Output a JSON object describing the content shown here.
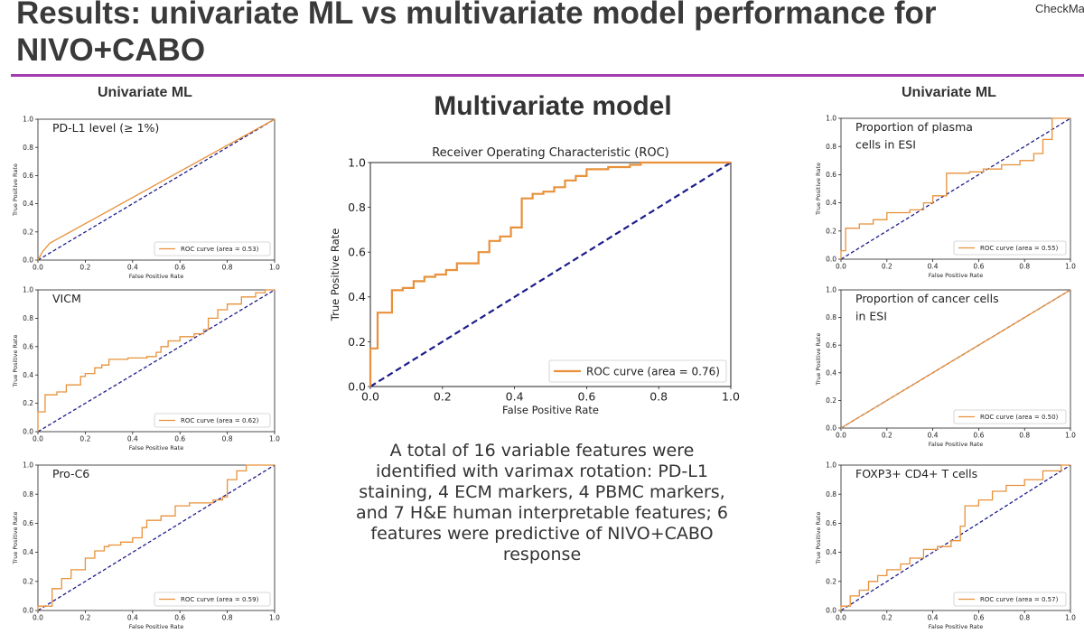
{
  "slide": {
    "title": "Results: univariate ML vs multivariate model performance for NIVO+CABO",
    "corner_tag": "CheckMa",
    "left_label": "Univariate ML",
    "right_label": "Univariate ML",
    "center_heading": "Multivariate model",
    "summary": "A total of 16 variable features were identified with varimax rotation: PD-L1 staining, 4 ECM markers, 4 PBMC markers, and 7 H&E human interpretable features; 6 features were predictive of NIVO+CABO response"
  },
  "colors": {
    "roc_line": "#e8913a",
    "chance_line": "#1c1c8c",
    "accent_rule": "#a23cb0"
  },
  "chart_data": [
    {
      "id": "pdl1",
      "type": "line",
      "title": "",
      "annotation": "PD-L1 level (≥ 1%)",
      "xlabel": "False Positive Rate",
      "ylabel": "True Positive Rate",
      "xlim": [
        0,
        1
      ],
      "ylim": [
        0,
        1
      ],
      "xticks": [
        "0.0",
        "0.2",
        "0.4",
        "0.6",
        "0.8",
        "1.0"
      ],
      "yticks": [
        "0.0",
        "0.2",
        "0.4",
        "0.6",
        "0.8",
        "1.0"
      ],
      "grid": false,
      "legend_position": "lower right",
      "series": [
        {
          "name": "ROC curve (area = 0.53)",
          "step": false,
          "x": [
            0,
            0.02,
            0.05,
            1.0
          ],
          "y": [
            0,
            0.06,
            0.12,
            1.0
          ]
        }
      ],
      "chance_line": true
    },
    {
      "id": "vicm",
      "type": "line",
      "title": "",
      "annotation": "VICM",
      "xlabel": "False Positive Rate",
      "ylabel": "True Positive Rate",
      "xlim": [
        0,
        1
      ],
      "ylim": [
        0,
        1
      ],
      "xticks": [
        "0.0",
        "0.2",
        "0.4",
        "0.6",
        "0.8",
        "1.0"
      ],
      "yticks": [
        "0.0",
        "0.2",
        "0.4",
        "0.6",
        "0.8",
        "1.0"
      ],
      "grid": false,
      "legend_position": "lower right",
      "series": [
        {
          "name": "ROC curve (area = 0.62)",
          "step": true,
          "x": [
            0,
            0,
            0.03,
            0.03,
            0.08,
            0.08,
            0.12,
            0.12,
            0.18,
            0.18,
            0.2,
            0.2,
            0.24,
            0.24,
            0.27,
            0.27,
            0.3,
            0.3,
            0.38,
            0.38,
            0.46,
            0.46,
            0.5,
            0.5,
            0.52,
            0.52,
            0.55,
            0.55,
            0.6,
            0.6,
            0.66,
            0.66,
            0.7,
            0.7,
            0.72,
            0.72,
            0.76,
            0.76,
            0.8,
            0.8,
            0.86,
            0.86,
            0.92,
            0.92,
            0.96,
            0.96,
            1.0,
            1.0
          ],
          "y": [
            0,
            0.14,
            0.14,
            0.26,
            0.26,
            0.28,
            0.28,
            0.33,
            0.33,
            0.39,
            0.39,
            0.41,
            0.41,
            0.45,
            0.45,
            0.47,
            0.47,
            0.51,
            0.51,
            0.52,
            0.52,
            0.53,
            0.53,
            0.56,
            0.56,
            0.6,
            0.6,
            0.64,
            0.64,
            0.67,
            0.67,
            0.69,
            0.69,
            0.72,
            0.72,
            0.8,
            0.8,
            0.86,
            0.86,
            0.9,
            0.9,
            0.95,
            0.95,
            0.98,
            0.98,
            1.0,
            1.0,
            1.0
          ]
        }
      ],
      "chance_line": true
    },
    {
      "id": "proc6",
      "type": "line",
      "title": "",
      "annotation": "Pro-C6",
      "xlabel": "False Positive Rate",
      "ylabel": "True Positive Rate",
      "xlim": [
        0,
        1
      ],
      "ylim": [
        0,
        1
      ],
      "xticks": [
        "0.0",
        "0.2",
        "0.4",
        "0.6",
        "0.8",
        "1.0"
      ],
      "yticks": [
        "0.0",
        "0.2",
        "0.4",
        "0.6",
        "0.8",
        "1.0"
      ],
      "grid": false,
      "legend_position": "lower right",
      "series": [
        {
          "name": "ROC curve (area = 0.59)",
          "step": true,
          "x": [
            0,
            0,
            0.06,
            0.06,
            0.1,
            0.1,
            0.14,
            0.14,
            0.2,
            0.2,
            0.24,
            0.24,
            0.28,
            0.28,
            0.3,
            0.3,
            0.35,
            0.35,
            0.4,
            0.4,
            0.44,
            0.44,
            0.46,
            0.46,
            0.52,
            0.52,
            0.58,
            0.58,
            0.64,
            0.64,
            0.74,
            0.74,
            0.78,
            0.78,
            0.8,
            0.8,
            0.84,
            0.84,
            0.88,
            0.88,
            1.0
          ],
          "y": [
            0,
            0.03,
            0.03,
            0.15,
            0.15,
            0.22,
            0.22,
            0.28,
            0.28,
            0.36,
            0.36,
            0.41,
            0.41,
            0.44,
            0.44,
            0.45,
            0.45,
            0.47,
            0.47,
            0.5,
            0.5,
            0.57,
            0.57,
            0.62,
            0.62,
            0.65,
            0.65,
            0.72,
            0.72,
            0.74,
            0.74,
            0.76,
            0.76,
            0.78,
            0.78,
            0.9,
            0.9,
            0.96,
            0.96,
            1.0,
            1.0
          ]
        }
      ],
      "chance_line": true
    },
    {
      "id": "multivariate",
      "type": "line",
      "title": "Receiver Operating Characteristic (ROC)",
      "annotation": "",
      "xlabel": "False Positive Rate",
      "ylabel": "True Positive Rate",
      "xlim": [
        0,
        1
      ],
      "ylim": [
        0,
        1
      ],
      "xticks": [
        "0.0",
        "0.2",
        "0.4",
        "0.6",
        "0.8",
        "1.0"
      ],
      "yticks": [
        "0.0",
        "0.2",
        "0.4",
        "0.6",
        "0.8",
        "1.0"
      ],
      "grid": false,
      "legend_position": "lower right",
      "series": [
        {
          "name": "ROC curve (area = 0.76)",
          "step": true,
          "x": [
            0,
            0,
            0.02,
            0.02,
            0.06,
            0.06,
            0.09,
            0.09,
            0.12,
            0.12,
            0.15,
            0.15,
            0.18,
            0.18,
            0.21,
            0.21,
            0.24,
            0.24,
            0.3,
            0.3,
            0.33,
            0.33,
            0.36,
            0.36,
            0.39,
            0.39,
            0.42,
            0.42,
            0.45,
            0.45,
            0.48,
            0.48,
            0.51,
            0.51,
            0.54,
            0.54,
            0.57,
            0.57,
            0.6,
            0.6,
            0.66,
            0.66,
            0.72,
            0.72,
            0.75,
            0.75,
            0.79,
            0.79,
            1.0
          ],
          "y": [
            0,
            0.17,
            0.17,
            0.33,
            0.33,
            0.43,
            0.43,
            0.44,
            0.44,
            0.47,
            0.47,
            0.49,
            0.49,
            0.5,
            0.5,
            0.52,
            0.52,
            0.55,
            0.55,
            0.6,
            0.6,
            0.65,
            0.65,
            0.67,
            0.67,
            0.71,
            0.71,
            0.84,
            0.84,
            0.86,
            0.86,
            0.87,
            0.87,
            0.89,
            0.89,
            0.92,
            0.92,
            0.94,
            0.94,
            0.97,
            0.97,
            0.98,
            0.98,
            0.99,
            0.99,
            1.0,
            1.0,
            1.0,
            1.0
          ]
        }
      ],
      "chance_line": true
    },
    {
      "id": "plasma",
      "type": "line",
      "title": "",
      "annotation": "Proportion of plasma cells in ESI",
      "xlabel": "False Positive Rate",
      "ylabel": "True Positive Rate",
      "xlim": [
        0,
        1
      ],
      "ylim": [
        0,
        1
      ],
      "xticks": [
        "0.0",
        "0.2",
        "0.4",
        "0.6",
        "0.8",
        "1.0"
      ],
      "yticks": [
        "0.0",
        "0.2",
        "0.4",
        "0.6",
        "0.8",
        "1.0"
      ],
      "grid": false,
      "legend_position": "lower right",
      "series": [
        {
          "name": "ROC curve (area = 0.55)",
          "step": true,
          "x": [
            0,
            0,
            0.02,
            0.02,
            0.08,
            0.08,
            0.14,
            0.14,
            0.2,
            0.2,
            0.3,
            0.3,
            0.36,
            0.36,
            0.4,
            0.4,
            0.46,
            0.46,
            0.56,
            0.56,
            0.62,
            0.62,
            0.7,
            0.7,
            0.78,
            0.78,
            0.84,
            0.84,
            0.88,
            0.88,
            0.92,
            0.92,
            1.0
          ],
          "y": [
            0,
            0.06,
            0.06,
            0.22,
            0.22,
            0.25,
            0.25,
            0.28,
            0.28,
            0.33,
            0.33,
            0.35,
            0.35,
            0.4,
            0.4,
            0.45,
            0.45,
            0.61,
            0.61,
            0.62,
            0.62,
            0.64,
            0.64,
            0.67,
            0.67,
            0.7,
            0.7,
            0.75,
            0.75,
            0.85,
            0.85,
            1.0,
            1.0
          ]
        }
      ],
      "chance_line": true
    },
    {
      "id": "cancer",
      "type": "line",
      "title": "",
      "annotation": "Proportion of cancer cells in ESI",
      "xlabel": "False Positive Rate",
      "ylabel": "True Positive Rate",
      "xlim": [
        0,
        1
      ],
      "ylim": [
        0,
        1
      ],
      "xticks": [
        "0.0",
        "0.2",
        "0.4",
        "0.6",
        "0.8",
        "1.0"
      ],
      "yticks": [
        "0.0",
        "0.2",
        "0.4",
        "0.6",
        "0.8",
        "1.0"
      ],
      "grid": false,
      "legend_position": "lower right",
      "series": [
        {
          "name": "ROC curve (area = 0.50)",
          "step": false,
          "x": [
            0,
            1.0
          ],
          "y": [
            0,
            1.0
          ]
        }
      ],
      "chance_line": true
    },
    {
      "id": "foxp3",
      "type": "line",
      "title": "",
      "annotation": "FOXP3+ CD4+ T cells",
      "xlabel": "False Positive Rate",
      "ylabel": "True Positive Rate",
      "xlim": [
        0,
        1
      ],
      "ylim": [
        0,
        1
      ],
      "xticks": [
        "0.0",
        "0.2",
        "0.4",
        "0.6",
        "0.8",
        "1.0"
      ],
      "yticks": [
        "0.0",
        "0.2",
        "0.4",
        "0.6",
        "0.8",
        "1.0"
      ],
      "grid": false,
      "legend_position": "lower right",
      "series": [
        {
          "name": "ROC curve (area = 0.57)",
          "step": true,
          "x": [
            0,
            0,
            0.04,
            0.04,
            0.08,
            0.08,
            0.12,
            0.12,
            0.16,
            0.16,
            0.2,
            0.2,
            0.26,
            0.26,
            0.3,
            0.3,
            0.36,
            0.36,
            0.42,
            0.42,
            0.48,
            0.48,
            0.52,
            0.52,
            0.54,
            0.54,
            0.6,
            0.6,
            0.66,
            0.66,
            0.72,
            0.72,
            0.8,
            0.8,
            0.88,
            0.88,
            0.96,
            0.96,
            1.0
          ],
          "y": [
            0,
            0.03,
            0.03,
            0.1,
            0.1,
            0.14,
            0.14,
            0.2,
            0.2,
            0.24,
            0.24,
            0.28,
            0.28,
            0.32,
            0.32,
            0.36,
            0.36,
            0.42,
            0.42,
            0.44,
            0.44,
            0.48,
            0.48,
            0.58,
            0.58,
            0.72,
            0.72,
            0.76,
            0.76,
            0.82,
            0.82,
            0.86,
            0.86,
            0.9,
            0.9,
            0.96,
            0.96,
            1.0,
            1.0
          ]
        }
      ],
      "chance_line": true
    }
  ]
}
